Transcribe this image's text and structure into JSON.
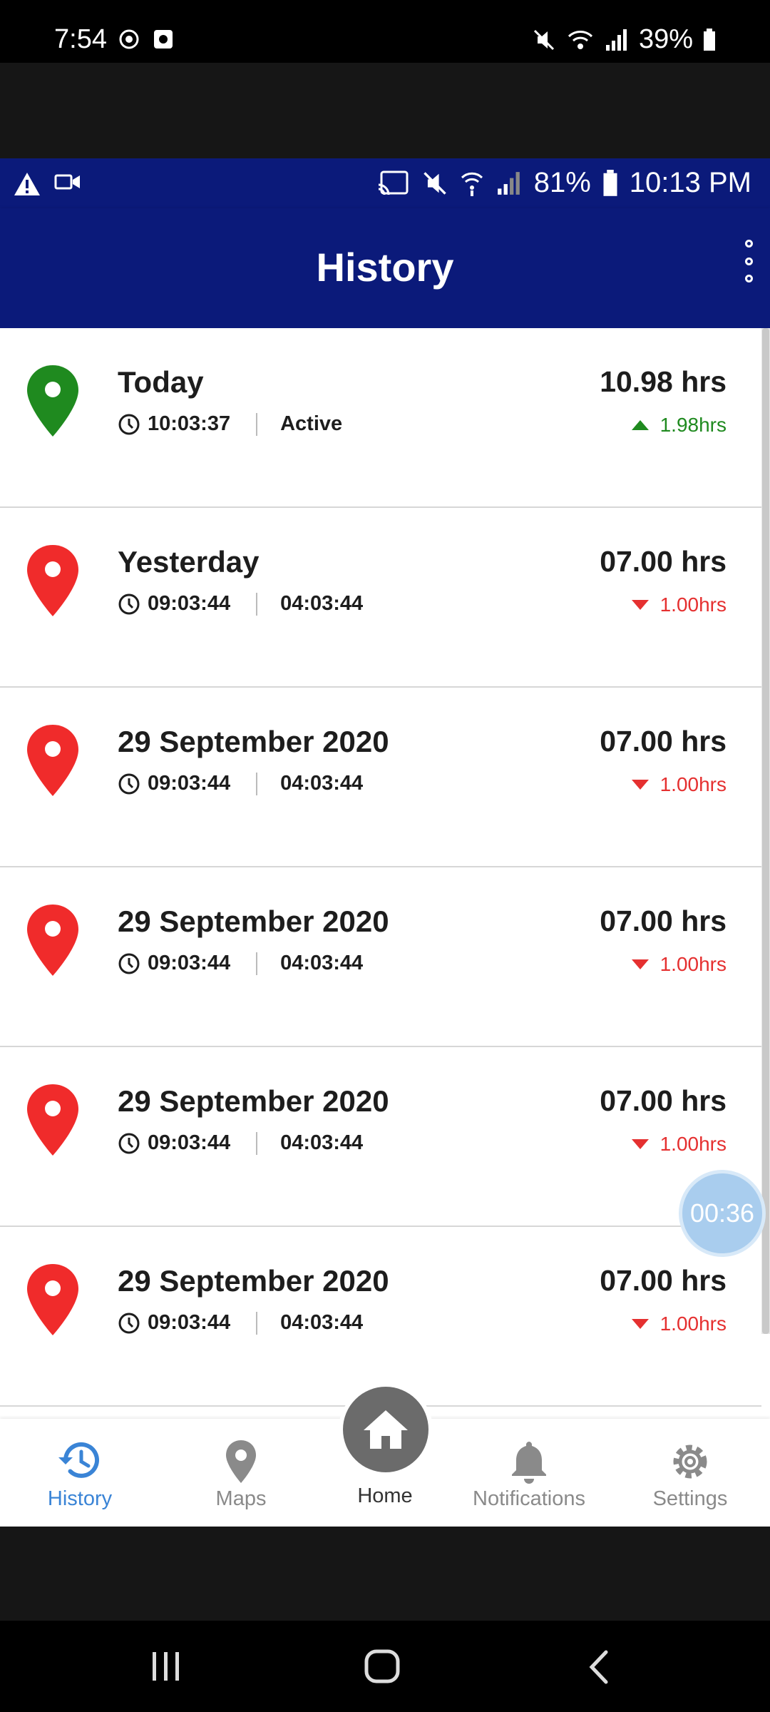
{
  "device_status": {
    "time": "7:54",
    "battery": "39%"
  },
  "app_status": {
    "battery": "81%",
    "time": "10:13 PM"
  },
  "header": {
    "title": "History"
  },
  "history": [
    {
      "date": "Today",
      "start": "10:03:37",
      "end": "Active",
      "hours": "10.98 hrs",
      "delta": "1.98hrs",
      "trend": "up",
      "pin_color": "#1f8a1f"
    },
    {
      "date": "Yesterday",
      "start": "09:03:44",
      "end": "04:03:44",
      "hours": "07.00 hrs",
      "delta": "1.00hrs",
      "trend": "down",
      "pin_color": "#f02b2b"
    },
    {
      "date": "29 September 2020",
      "start": "09:03:44",
      "end": "04:03:44",
      "hours": "07.00 hrs",
      "delta": "1.00hrs",
      "trend": "down",
      "pin_color": "#f02b2b"
    },
    {
      "date": "29 September 2020",
      "start": "09:03:44",
      "end": "04:03:44",
      "hours": "07.00 hrs",
      "delta": "1.00hrs",
      "trend": "down",
      "pin_color": "#f02b2b"
    },
    {
      "date": "29 September 2020",
      "start": "09:03:44",
      "end": "04:03:44",
      "hours": "07.00 hrs",
      "delta": "1.00hrs",
      "trend": "down",
      "pin_color": "#f02b2b"
    },
    {
      "date": "29 September 2020",
      "start": "09:03:44",
      "end": "04:03:44",
      "hours": "07.00 hrs",
      "delta": "1.00hrs",
      "trend": "down",
      "pin_color": "#f02b2b"
    }
  ],
  "timer_bubble": "00:36",
  "bottom_nav": {
    "history": "History",
    "maps": "Maps",
    "home": "Home",
    "notifications": "Notifications",
    "settings": "Settings"
  },
  "colors": {
    "app_bar": "#0b1a7a",
    "active_nav": "#3a84d6",
    "up": "#1f8a1f",
    "down": "#e53030"
  }
}
